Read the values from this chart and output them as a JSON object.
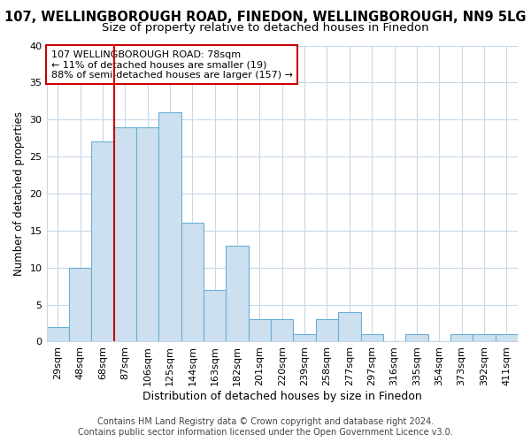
{
  "title1": "107, WELLINGBOROUGH ROAD, FINEDON, WELLINGBOROUGH, NN9 5LG",
  "title2": "Size of property relative to detached houses in Finedon",
  "xlabel": "Distribution of detached houses by size in Finedon",
  "ylabel": "Number of detached properties",
  "categories": [
    "29sqm",
    "48sqm",
    "68sqm",
    "87sqm",
    "106sqm",
    "125sqm",
    "144sqm",
    "163sqm",
    "182sqm",
    "201sqm",
    "220sqm",
    "239sqm",
    "258sqm",
    "277sqm",
    "297sqm",
    "316sqm",
    "335sqm",
    "354sqm",
    "373sqm",
    "392sqm",
    "411sqm"
  ],
  "values": [
    2,
    10,
    27,
    29,
    29,
    31,
    16,
    7,
    13,
    3,
    3,
    1,
    3,
    4,
    1,
    0,
    1,
    0,
    1,
    1,
    1
  ],
  "bar_color": "#cde0f0",
  "bar_edge_color": "#6aafd6",
  "vline_x": 2.5,
  "vline_color": "#cc0000",
  "annotation_line1": "107 WELLINGBOROUGH ROAD: 78sqm",
  "annotation_line2": "← 11% of detached houses are smaller (19)",
  "annotation_line3": "88% of semi-detached houses are larger (157) →",
  "annotation_box_color": "#ffffff",
  "annotation_box_edge": "#cc0000",
  "ylim": [
    0,
    40
  ],
  "yticks": [
    0,
    5,
    10,
    15,
    20,
    25,
    30,
    35,
    40
  ],
  "footer1": "Contains HM Land Registry data © Crown copyright and database right 2024.",
  "footer2": "Contains public sector information licensed under the Open Government Licence v3.0.",
  "bg_color": "#ffffff",
  "plot_bg_color": "#ffffff",
  "grid_color": "#c8d8e8",
  "title1_fontsize": 10.5,
  "title2_fontsize": 9.5,
  "xlabel_fontsize": 9,
  "ylabel_fontsize": 8.5,
  "tick_fontsize": 8,
  "annotation_fontsize": 8,
  "footer_fontsize": 7
}
